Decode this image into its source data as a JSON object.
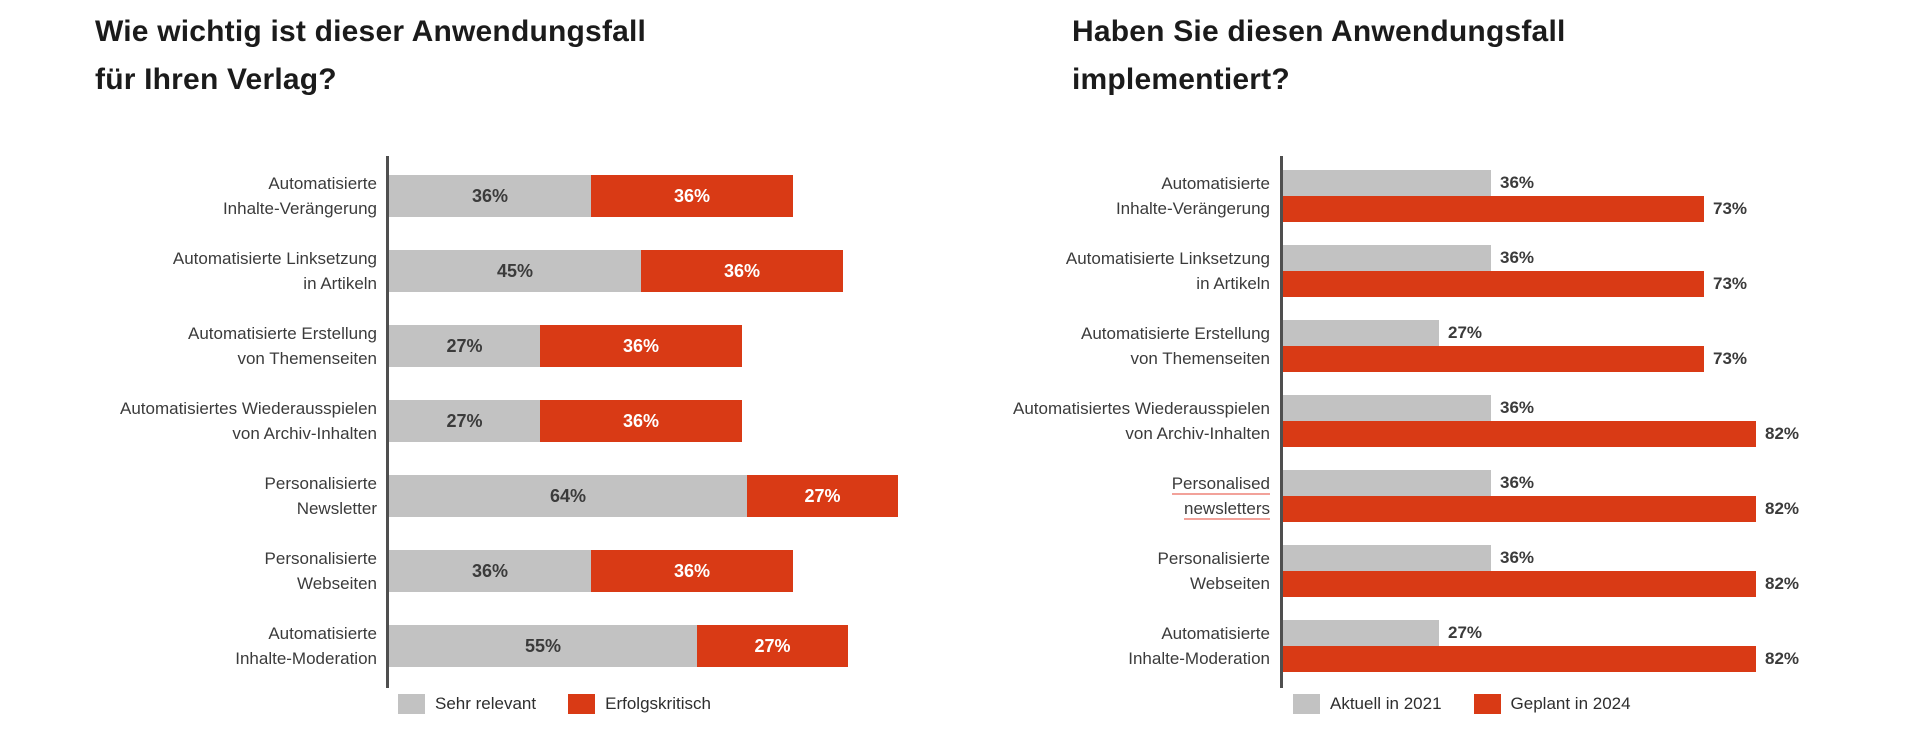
{
  "colors": {
    "bar_gray": "#C2C2C2",
    "bar_red": "#D93A15",
    "text_dark": "#3B3B3B",
    "text_light": "#FFFFFF",
    "axis": "#4F4F4F",
    "title": "#1B1B1B",
    "translate_underline": "#F2A29A"
  },
  "chart_data": [
    {
      "type": "bar",
      "subtype": "horizontal-stacked",
      "title": "Wie wichtig ist dieser Anwendungsfall\nfür Ihren Verlag?",
      "categories": [
        [
          "Automatisierte",
          "Inhalte-Verängerung"
        ],
        [
          "Automatisierte Linksetzung",
          "in Artikeln"
        ],
        [
          "Automatisierte Erstellung",
          "von Themenseiten"
        ],
        [
          "Automatisiertes Wiederausspielen",
          "von Archiv-Inhalten"
        ],
        [
          "Personalisierte",
          "Newsletter"
        ],
        [
          "Personalisierte",
          "Webseiten"
        ],
        [
          "Automatisierte",
          "Inhalte-Moderation"
        ]
      ],
      "series": [
        {
          "name": "Sehr relevant",
          "color_key": "bar_gray",
          "values": [
            36,
            45,
            27,
            27,
            64,
            36,
            55
          ]
        },
        {
          "name": "Erfolgskritisch",
          "color_key": "bar_red",
          "values": [
            36,
            36,
            36,
            36,
            27,
            36,
            27
          ]
        }
      ],
      "value_suffix": "%",
      "xlim": [
        0,
        100
      ],
      "grid": false,
      "legend_position": "bottom",
      "value_label_position": "inside"
    },
    {
      "type": "bar",
      "subtype": "horizontal-grouped",
      "title": "Haben Sie diesen Anwendungsfall\nimplementiert?",
      "categories": [
        [
          "Automatisierte",
          "Inhalte-Verängerung"
        ],
        [
          "Automatisierte Linksetzung",
          "in Artikeln"
        ],
        [
          "Automatisierte Erstellung",
          "von Themenseiten"
        ],
        [
          "Automatisiertes Wiederausspielen",
          "von Archiv-Inhalten"
        ],
        [
          "Personalised",
          "newsletters"
        ],
        [
          "Personalisierte",
          "Webseiten"
        ],
        [
          "Automatisierte",
          "Inhalte-Moderation"
        ]
      ],
      "underlined_category_index": 4,
      "series": [
        {
          "name": "Aktuell in 2021",
          "color_key": "bar_gray",
          "values": [
            36,
            36,
            27,
            36,
            36,
            36,
            27
          ]
        },
        {
          "name": "Geplant in 2024",
          "color_key": "bar_red",
          "values": [
            73,
            73,
            73,
            82,
            82,
            82,
            82
          ]
        }
      ],
      "value_suffix": "%",
      "xlim": [
        0,
        100
      ],
      "grid": false,
      "legend_position": "bottom",
      "value_label_position": "outside-right"
    }
  ]
}
